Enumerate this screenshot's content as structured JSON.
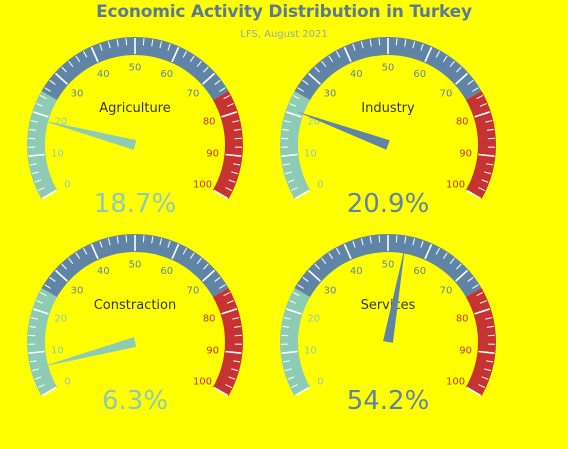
{
  "chart_data": {
    "type": "gauge",
    "title": "Economic Activity Distribution in Turkey",
    "subtitle": "LFS, August 2021",
    "scale": {
      "min": 0,
      "max": 100,
      "major_ticks": [
        0,
        10,
        20,
        30,
        40,
        50,
        60,
        70,
        80,
        90,
        100
      ]
    },
    "bands": [
      {
        "from": 0,
        "to": 25,
        "color": "#8ecbb4"
      },
      {
        "from": 25,
        "to": 75,
        "color": "#5f84a6"
      },
      {
        "from": 75,
        "to": 100,
        "color": "#c73333"
      }
    ],
    "gauges": [
      {
        "label": "Agriculture",
        "value": 18.7,
        "value_text": "18.7%",
        "needle_color": "#8ecbb4",
        "value_color": "#8ecbb4"
      },
      {
        "label": "Industry",
        "value": 20.9,
        "value_text": "20.9%",
        "needle_color": "#5f84a6",
        "value_color": "#5f84a6"
      },
      {
        "label": "Constraction",
        "value": 6.3,
        "value_text": "6.3%",
        "needle_color": "#8ecbb4",
        "value_color": "#8ecbb4"
      },
      {
        "label": "Services",
        "value": 54.2,
        "value_text": "54.2%",
        "needle_color": "#5f84a6",
        "value_color": "#5f84a6"
      }
    ]
  }
}
